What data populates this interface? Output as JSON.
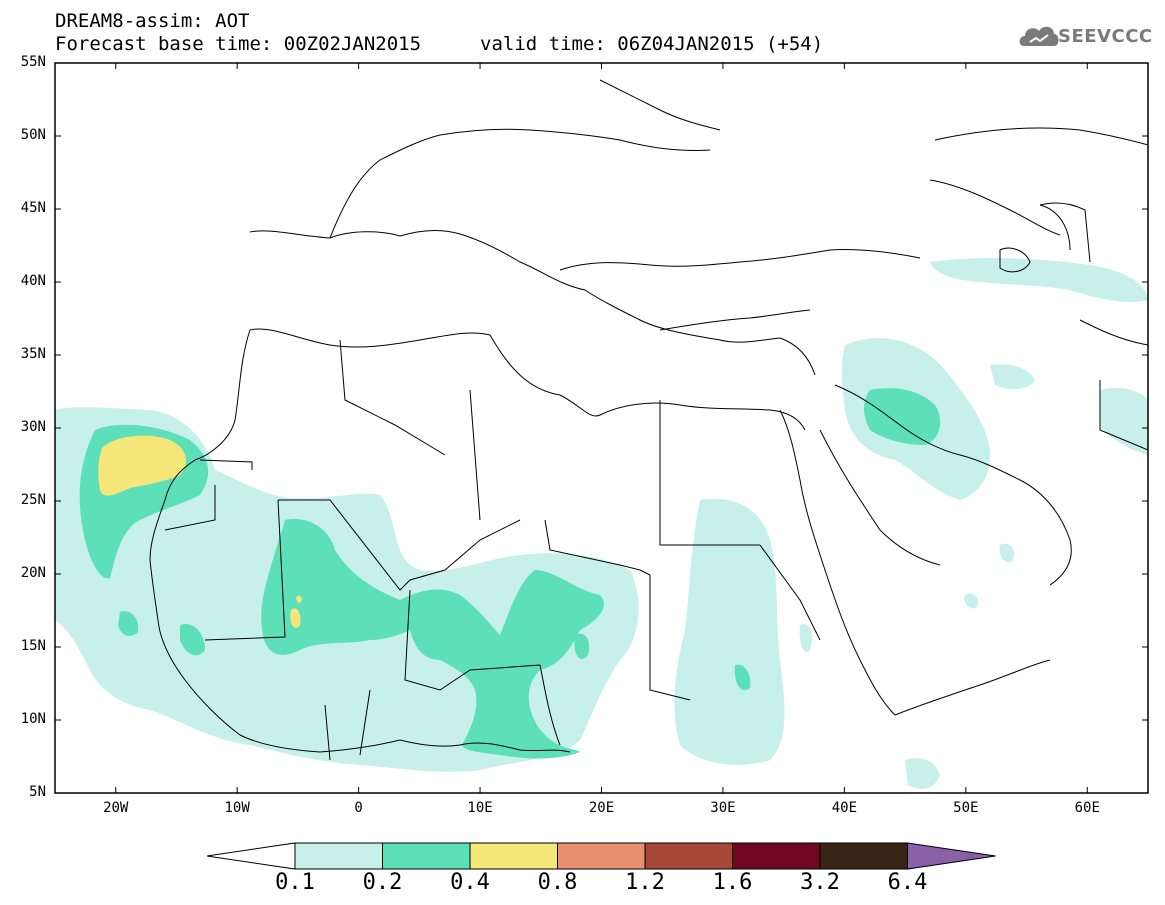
{
  "header": {
    "title_line1": "DREAM8-assim: AOT",
    "title_line2": "Forecast base time: 00Z02JAN2015",
    "valid_time": "valid time: 06Z04JAN2015 (+54)"
  },
  "logo": {
    "text": "SEEVCCC"
  },
  "axes": {
    "lat_labels": [
      "55N",
      "50N",
      "45N",
      "40N",
      "35N",
      "30N",
      "25N",
      "20N",
      "15N",
      "10N",
      "5N"
    ],
    "lon_labels": [
      "20W",
      "10W",
      "0",
      "10E",
      "20E",
      "30E",
      "40E",
      "50E",
      "60E"
    ],
    "lat_range": [
      5,
      55
    ],
    "lon_range": [
      -25,
      65
    ]
  },
  "colorbar": {
    "levels": [
      "0.1",
      "0.2",
      "0.4",
      "0.8",
      "1.2",
      "1.6",
      "3.2",
      "6.4"
    ],
    "colors": [
      "#ffffff",
      "#c8f0ea",
      "#5de0b8",
      "#f5e67a",
      "#e89070",
      "#a84838",
      "#700820",
      "#3a2418",
      "#8a60a8"
    ]
  },
  "field": {
    "variable": "AOT",
    "regions": [
      {
        "level": "0.1-0.2",
        "area": "Eastern Atlantic / Canary Islands, West Africa, Sahel, Sudan, Red Sea, Mesopotamia"
      },
      {
        "level": "0.2-0.4",
        "area": "Canary Islands, Mali, Niger, Chad, Nigeria, southern Iraq"
      },
      {
        "level": "0.4-0.8",
        "area": "Canary Islands, Mali"
      }
    ]
  }
}
